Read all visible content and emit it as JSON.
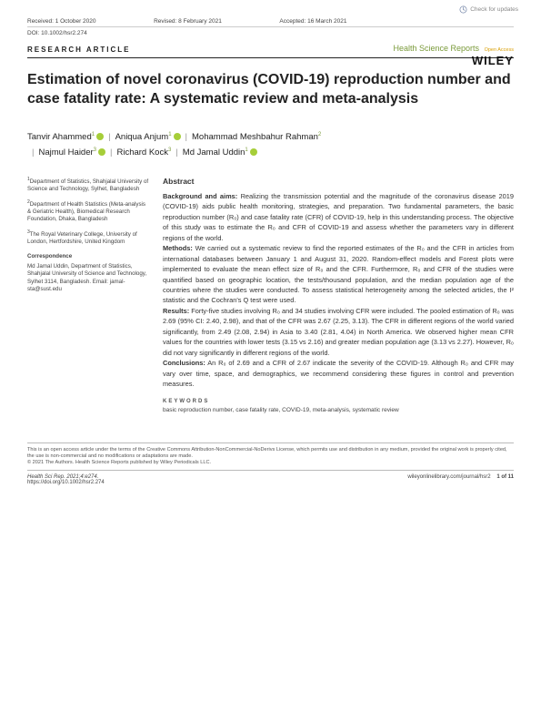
{
  "header": {
    "received": "Received: 1 October 2020",
    "revised": "Revised: 8 February 2021",
    "accepted": "Accepted: 16 March 2021",
    "doi": "DOI: 10.1002/hsr2.274",
    "check_updates": "Check for updates"
  },
  "journal": {
    "name": "Health Science Reports",
    "open_access": "Open Access",
    "publisher": "WILEY"
  },
  "article": {
    "type": "RESEARCH ARTICLE",
    "title": "Estimation of novel coronavirus (COVID-19) reproduction number and case fatality rate: A systematic review and meta-analysis"
  },
  "authors": [
    {
      "name": "Tanvir Ahammed",
      "aff": "1",
      "orcid": true
    },
    {
      "name": "Aniqua Anjum",
      "aff": "1",
      "orcid": true
    },
    {
      "name": "Mohammad Meshbahur Rahman",
      "aff": "2",
      "orcid": false
    },
    {
      "name": "Najmul Haider",
      "aff": "3",
      "orcid": true
    },
    {
      "name": "Richard Kock",
      "aff": "3",
      "orcid": false
    },
    {
      "name": "Md Jamal Uddin",
      "aff": "1",
      "orcid": true
    }
  ],
  "affiliations": [
    "Department of Statistics, Shahjalal University of Science and Technology, Sylhet, Bangladesh",
    "Department of Health Statistics (Meta-analysis & Geriatric Health), Biomedical Research Foundation, Dhaka, Bangladesh",
    "The Royal Veterinary College, University of London, Hertfordshire, United Kingdom"
  ],
  "correspondence": {
    "heading": "Correspondence",
    "text": "Md Jamal Uddin, Department of Statistics, Shahjalal University of Science and Technology, Sylhet 3114, Bangladesh. Email: jamal-sta@sust.edu"
  },
  "abstract": {
    "heading": "Abstract",
    "sections": {
      "background_label": "Background and aims:",
      "background": " Realizing the transmission potential and the magnitude of the coronavirus disease 2019 (COVID-19) aids public health monitoring, strategies, and preparation. Two fundamental parameters, the basic reproduction number (R₀) and case fatality rate (CFR) of COVID-19, help in this understanding process. The objective of this study was to estimate the R₀ and CFR of COVID-19 and assess whether the parameters vary in different regions of the world.",
      "methods_label": "Methods:",
      "methods": " We carried out a systematic review to find the reported estimates of the R₀ and the CFR in articles from international databases between January 1 and August 31, 2020. Random-effect models and Forest plots were implemented to evaluate the mean effect size of R₀ and the CFR. Furthermore, R₀ and CFR of the studies were quantified based on geographic location, the tests/thousand population, and the median population age of the countries where the studies were conducted. To assess statistical heterogeneity among the selected articles, the I² statistic and the Cochran's Q test were used.",
      "results_label": "Results:",
      "results": " Forty-five studies involving R₀ and 34 studies involving CFR were included. The pooled estimation of R₀ was 2.69 (95% CI: 2.40, 2.98), and that of the CFR was 2.67 (2.25, 3.13). The CFR in different regions of the world varied significantly, from 2.49 (2.08, 2.94) in Asia to 3.40 (2.81, 4.04) in North America. We observed higher mean CFR values for the countries with lower tests (3.15 vs 2.16) and greater median population age (3.13 vs 2.27). However, R₀ did not vary significantly in different regions of the world.",
      "conclusions_label": "Conclusions:",
      "conclusions": " An R₀ of 2.69 and a CFR of 2.67 indicate the severity of the COVID-19. Although R₀ and CFR may vary over time, space, and demographics, we recommend considering these figures in control and prevention measures."
    },
    "keywords_head": "KEYWORDS",
    "keywords": "basic reproduction number, case fatality rate, COVID-19, meta-analysis, systematic review"
  },
  "license": {
    "line1": "This is an open access article under the terms of the Creative Commons Attribution-NonCommercial-NoDerivs License, which permits use and distribution in any medium, provided the original work is properly cited, the use is non-commercial and no modifications or adaptations are made.",
    "line2": "© 2021 The Authors. Health Science Reports published by Wiley Periodicals LLC."
  },
  "footer": {
    "citation": "Health Sci Rep. 2021;4:e274.",
    "doi_url": "https://doi.org/10.1002/hsr2.274",
    "journal_url": "wileyonlinelibrary.com/journal/hsr2",
    "page": "1 of 11"
  },
  "colors": {
    "accent_green": "#7a9a3a",
    "orcid_green": "#a6ce39",
    "text": "#333333",
    "border": "#cccccc"
  }
}
